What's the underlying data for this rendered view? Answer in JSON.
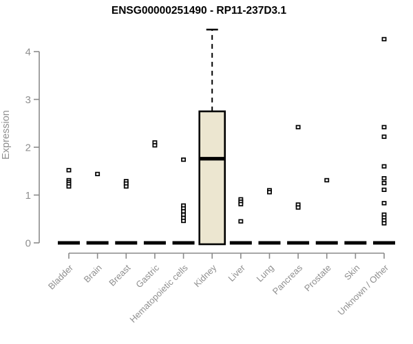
{
  "title": "ENSG00000251490 - RP11-237D3.1",
  "colors": {
    "axis": "#8a8a8a",
    "label_gray": "#8f8f8f",
    "box_fill": "#ece6d0",
    "marker": "#000000",
    "background": "#ffffff"
  },
  "chart_data": {
    "type": "boxplot",
    "title": "ENSG00000251490 - RP11-237D3.1",
    "xlabel": "",
    "ylabel": "Expression",
    "ylim": [
      0,
      4.5
    ],
    "yticks": [
      0,
      1,
      2,
      3,
      4
    ],
    "grid": false,
    "legend": false,
    "categories": [
      "Bladder",
      "Brain",
      "Breast",
      "Gastric",
      "Hematopoietic cells",
      "Kidney",
      "Liver",
      "Lung",
      "Pancreas",
      "Prostate",
      "Skin",
      "Unknown / Other"
    ],
    "series": [
      {
        "name": "Bladder",
        "zero_bar": true,
        "box": null,
        "points": [
          1.52,
          1.31,
          1.27,
          1.23,
          1.18
        ]
      },
      {
        "name": "Brain",
        "zero_bar": true,
        "box": null,
        "points": [
          1.44
        ]
      },
      {
        "name": "Breast",
        "zero_bar": true,
        "box": null,
        "points": [
          1.29,
          1.24,
          1.18
        ]
      },
      {
        "name": "Gastric",
        "zero_bar": true,
        "box": null,
        "points": [
          2.1,
          2.04
        ]
      },
      {
        "name": "Hematopoietic cells",
        "zero_bar": true,
        "box": null,
        "points": [
          1.74,
          0.78,
          0.72,
          0.66,
          0.59,
          0.52,
          0.46
        ]
      },
      {
        "name": "Kidney",
        "zero_bar": false,
        "box": {
          "q1": 0,
          "median": 1.76,
          "q3": 2.75,
          "whisker_low": 0,
          "whisker_high": 4.46
        },
        "points": []
      },
      {
        "name": "Liver",
        "zero_bar": true,
        "box": null,
        "points": [
          0.91,
          0.86,
          0.81,
          0.45
        ]
      },
      {
        "name": "Lung",
        "zero_bar": true,
        "box": null,
        "points": [
          1.1,
          1.06
        ]
      },
      {
        "name": "Pancreas",
        "zero_bar": true,
        "box": null,
        "points": [
          2.42,
          0.8,
          0.74
        ]
      },
      {
        "name": "Prostate",
        "zero_bar": true,
        "box": null,
        "points": [
          1.31
        ]
      },
      {
        "name": "Skin",
        "zero_bar": true,
        "box": null,
        "points": []
      },
      {
        "name": "Unknown / Other",
        "zero_bar": true,
        "box": null,
        "points": [
          4.26,
          2.42,
          2.22,
          1.6,
          1.35,
          1.25,
          1.11,
          0.83,
          0.59,
          0.53,
          0.47,
          0.41
        ]
      }
    ]
  }
}
